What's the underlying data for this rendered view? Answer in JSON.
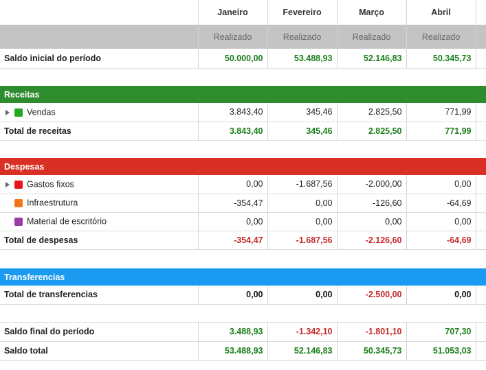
{
  "header": {
    "months": [
      "Janeiro",
      "Fevereiro",
      "Março",
      "Abril"
    ],
    "subheader": [
      "Realizado",
      "Realizado",
      "Realizado",
      "Realizado"
    ]
  },
  "opening": {
    "label": "Saldo inicial do período",
    "values": [
      "50.000,00",
      "53.488,93",
      "52.146,83",
      "50.345,73"
    ]
  },
  "revenues": {
    "title": "Receitas",
    "color": "#2e8b2e",
    "items": [
      {
        "label": "Vendas",
        "color": "#1faa1f",
        "values": [
          "3.843,40",
          "345,46",
          "2.825,50",
          "771,99"
        ]
      }
    ],
    "total": {
      "label": "Total de receitas",
      "values": [
        "3.843,40",
        "345,46",
        "2.825,50",
        "771,99"
      ]
    }
  },
  "expenses": {
    "title": "Despesas",
    "color": "#d93025",
    "items": [
      {
        "label": "Gastos fixos",
        "color": "#e8161b",
        "values": [
          "0,00",
          "-1.687,56",
          "-2.000,00",
          "0,00"
        ]
      },
      {
        "label": "Infraestrutura",
        "color": "#f5761a",
        "values": [
          "-354,47",
          "0,00",
          "-126,60",
          "-64,69"
        ]
      },
      {
        "label": "Material de escritório",
        "color": "#9c3aa8",
        "values": [
          "0,00",
          "0,00",
          "0,00",
          "0,00"
        ]
      }
    ],
    "total": {
      "label": "Total de despesas",
      "values": [
        "-354,47",
        "-1.687,56",
        "-2.126,60",
        "-64,69"
      ]
    }
  },
  "transfers": {
    "title": "Transferencias",
    "color": "#1a9af0",
    "total": {
      "label": "Total de transferencias",
      "values": [
        "0,00",
        "0,00",
        "-2.500,00",
        "0,00"
      ]
    }
  },
  "closing": {
    "label": "Saldo final do período",
    "values": [
      "3.488,93",
      "-1.342,10",
      "-1.801,10",
      "707,30"
    ]
  },
  "balance": {
    "label": "Saldo total",
    "values": [
      "53.488,93",
      "52.146,83",
      "50.345,73",
      "51.053,03"
    ]
  },
  "colors": {
    "positive": "#1b7f1b",
    "negative": "#c62828"
  }
}
